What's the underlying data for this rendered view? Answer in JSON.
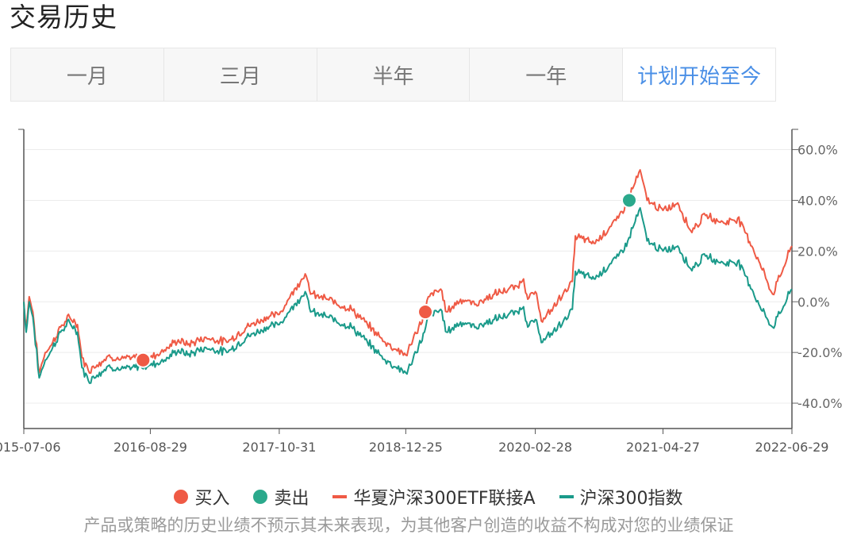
{
  "page_title": "交易历史",
  "tabs": [
    {
      "label": "一月",
      "active": false
    },
    {
      "label": "三月",
      "active": false
    },
    {
      "label": "半年",
      "active": false
    },
    {
      "label": "一年",
      "active": false
    },
    {
      "label": "计划开始至今",
      "active": true
    }
  ],
  "legend": {
    "buy": "买入",
    "sell": "卖出",
    "fund": "华夏沪深300ETF联接A",
    "index": "沪深300指数"
  },
  "disclaimer": "产品或策略的历史业绩不预示其未来表现，为其他客户创造的收益不构成对您的业绩保证",
  "colors": {
    "fund": "#ef5a45",
    "index": "#1a9a8a",
    "buy": "#ef5a45",
    "sell": "#2ba98c",
    "active_tab": "#4a8fe6"
  },
  "chart_data": {
    "type": "line",
    "x_tick_labels": [
      "2015-07-06",
      "2016-08-29",
      "2017-10-31",
      "2018-12-25",
      "2020-02-28",
      "2021-04-27",
      "2022-06-29"
    ],
    "y_tick_labels": [
      "60.0%",
      "40.0%",
      "20.0%",
      "0.0%",
      "-20.0%",
      "-40.0%"
    ],
    "y_ticks": [
      60,
      40,
      20,
      0,
      -20,
      -40
    ],
    "ylim": [
      -50,
      68
    ],
    "xlim": [
      "2015-07-06",
      "2022-06-29"
    ],
    "y_axis_side": "right",
    "grid": true,
    "legend_position": "bottom",
    "series": [
      {
        "name": "华夏沪深300ETF联接A",
        "points": [
          [
            "2015-07-06",
            0
          ],
          [
            "2015-07-14",
            -10
          ],
          [
            "2015-07-24",
            2
          ],
          [
            "2015-08-05",
            -4
          ],
          [
            "2015-08-26",
            -28
          ],
          [
            "2015-09-15",
            -20
          ],
          [
            "2015-10-10",
            -16
          ],
          [
            "2015-11-05",
            -10
          ],
          [
            "2015-12-05",
            -6
          ],
          [
            "2015-12-31",
            -9
          ],
          [
            "2016-01-15",
            -22
          ],
          [
            "2016-02-05",
            -27
          ],
          [
            "2016-03-05",
            -25
          ],
          [
            "2016-04-15",
            -21
          ],
          [
            "2016-05-20",
            -23
          ],
          [
            "2016-06-28",
            -22
          ],
          [
            "2016-08-29",
            -22
          ],
          [
            "2016-10-15",
            -19
          ],
          [
            "2016-11-30",
            -15
          ],
          [
            "2016-12-31",
            -17
          ],
          [
            "2017-03-01",
            -14
          ],
          [
            "2017-05-10",
            -16
          ],
          [
            "2017-07-15",
            -10
          ],
          [
            "2017-09-20",
            -6
          ],
          [
            "2017-10-31",
            -5
          ],
          [
            "2017-12-20",
            5
          ],
          [
            "2018-01-25",
            11
          ],
          [
            "2018-02-12",
            3
          ],
          [
            "2018-04-10",
            1
          ],
          [
            "2018-06-28",
            -3
          ],
          [
            "2018-08-20",
            -9
          ],
          [
            "2018-10-18",
            -16
          ],
          [
            "2018-12-25",
            -21
          ],
          [
            "2019-01-10",
            -17
          ],
          [
            "2019-02-25",
            -5
          ],
          [
            "2019-03-10",
            2
          ],
          [
            "2019-04-20",
            5
          ],
          [
            "2019-05-10",
            -4
          ],
          [
            "2019-06-25",
            1
          ],
          [
            "2019-08-15",
            -1
          ],
          [
            "2019-10-15",
            3
          ],
          [
            "2019-12-31",
            6
          ],
          [
            "2020-01-20",
            9
          ],
          [
            "2020-02-03",
            1
          ],
          [
            "2020-02-28",
            4
          ],
          [
            "2020-03-23",
            -8
          ],
          [
            "2020-05-30",
            3
          ],
          [
            "2020-06-30",
            8
          ],
          [
            "2020-07-10",
            26
          ],
          [
            "2020-09-10",
            23
          ],
          [
            "2020-11-30",
            33
          ],
          [
            "2020-12-31",
            40
          ],
          [
            "2021-02-10",
            52
          ],
          [
            "2021-03-05",
            40
          ],
          [
            "2021-04-27",
            36
          ],
          [
            "2021-06-15",
            39
          ],
          [
            "2021-07-28",
            28
          ],
          [
            "2021-09-15",
            34
          ],
          [
            "2021-11-15",
            31
          ],
          [
            "2021-12-31",
            33
          ],
          [
            "2022-01-28",
            27
          ],
          [
            "2022-03-15",
            15
          ],
          [
            "2022-04-26",
            3
          ],
          [
            "2022-06-29",
            22
          ]
        ]
      },
      {
        "name": "沪深300指数",
        "points": [
          [
            "2015-07-06",
            0
          ],
          [
            "2015-07-14",
            -12
          ],
          [
            "2015-07-24",
            0
          ],
          [
            "2015-08-05",
            -6
          ],
          [
            "2015-08-26",
            -30
          ],
          [
            "2015-09-15",
            -23
          ],
          [
            "2015-10-10",
            -18
          ],
          [
            "2015-11-05",
            -12
          ],
          [
            "2015-12-05",
            -8
          ],
          [
            "2015-12-31",
            -12
          ],
          [
            "2016-01-15",
            -26
          ],
          [
            "2016-02-05",
            -31
          ],
          [
            "2016-03-05",
            -29
          ],
          [
            "2016-04-15",
            -25
          ],
          [
            "2016-05-20",
            -27
          ],
          [
            "2016-06-28",
            -26
          ],
          [
            "2016-08-29",
            -25
          ],
          [
            "2016-10-15",
            -23
          ],
          [
            "2016-11-30",
            -19
          ],
          [
            "2016-12-31",
            -21
          ],
          [
            "2017-03-01",
            -18
          ],
          [
            "2017-05-10",
            -20
          ],
          [
            "2017-07-15",
            -14
          ],
          [
            "2017-09-20",
            -10
          ],
          [
            "2017-10-31",
            -9
          ],
          [
            "2017-12-20",
            -1
          ],
          [
            "2018-01-25",
            4
          ],
          [
            "2018-02-12",
            -4
          ],
          [
            "2018-04-10",
            -6
          ],
          [
            "2018-06-28",
            -10
          ],
          [
            "2018-08-20",
            -16
          ],
          [
            "2018-10-18",
            -23
          ],
          [
            "2018-12-25",
            -28
          ],
          [
            "2019-01-10",
            -25
          ],
          [
            "2019-02-25",
            -12
          ],
          [
            "2019-03-10",
            -6
          ],
          [
            "2019-04-20",
            -3
          ],
          [
            "2019-05-10",
            -12
          ],
          [
            "2019-06-25",
            -8
          ],
          [
            "2019-08-15",
            -10
          ],
          [
            "2019-10-15",
            -7
          ],
          [
            "2019-12-31",
            -4
          ],
          [
            "2020-01-20",
            -2
          ],
          [
            "2020-02-03",
            -10
          ],
          [
            "2020-02-28",
            -7
          ],
          [
            "2020-03-23",
            -16
          ],
          [
            "2020-05-30",
            -8
          ],
          [
            "2020-06-30",
            -3
          ],
          [
            "2020-07-10",
            12
          ],
          [
            "2020-09-10",
            9
          ],
          [
            "2020-11-30",
            18
          ],
          [
            "2020-12-31",
            24
          ],
          [
            "2021-02-10",
            37
          ],
          [
            "2021-03-05",
            24
          ],
          [
            "2021-04-27",
            20
          ],
          [
            "2021-06-15",
            22
          ],
          [
            "2021-07-28",
            13
          ],
          [
            "2021-09-15",
            18
          ],
          [
            "2021-11-15",
            15
          ],
          [
            "2021-12-31",
            16
          ],
          [
            "2022-01-28",
            10
          ],
          [
            "2022-03-15",
            -2
          ],
          [
            "2022-04-26",
            -10
          ],
          [
            "2022-06-29",
            5
          ]
        ]
      }
    ],
    "markers": [
      {
        "label": "买入",
        "date": "2016-08-05",
        "y": -23
      },
      {
        "label": "买入",
        "date": "2019-02-28",
        "y": -4
      },
      {
        "label": "卖出",
        "date": "2021-01-05",
        "y": 40
      }
    ]
  }
}
